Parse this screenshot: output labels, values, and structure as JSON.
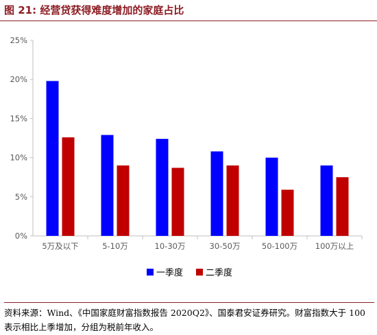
{
  "figure": {
    "title": "图 21:  经营贷获得难度增加的家庭占比",
    "source_note": "资料来源：Wind、《中国家庭财富指数报告 2020Q2》、国泰君安证券研究。财富指数大于 100 表示相比上季增加，分组为税前年收入。"
  },
  "colors": {
    "accent": "#8c1d24",
    "q1": "#0000ff",
    "q2": "#c00000",
    "axis": "#bfbfbf",
    "text": "#595959"
  },
  "chart_data": {
    "type": "bar",
    "title": "",
    "xlabel": "",
    "ylabel": "",
    "categories": [
      "5万及以下",
      "5-10万",
      "10-30万",
      "30-50万",
      "50-100万",
      "100万以上"
    ],
    "series": [
      {
        "name": "一季度",
        "values": [
          19.8,
          12.9,
          12.4,
          10.8,
          10.0,
          9.0
        ]
      },
      {
        "name": "二季度",
        "values": [
          12.6,
          9.0,
          8.7,
          9.0,
          5.9,
          7.5
        ]
      }
    ],
    "ylim": [
      0,
      25
    ],
    "yticks": [
      0,
      5,
      10,
      15,
      20,
      25
    ],
    "ytick_labels": [
      "0%",
      "5%",
      "10%",
      "15%",
      "20%",
      "25%"
    ],
    "grid": false,
    "legend_position": "bottom-center"
  }
}
